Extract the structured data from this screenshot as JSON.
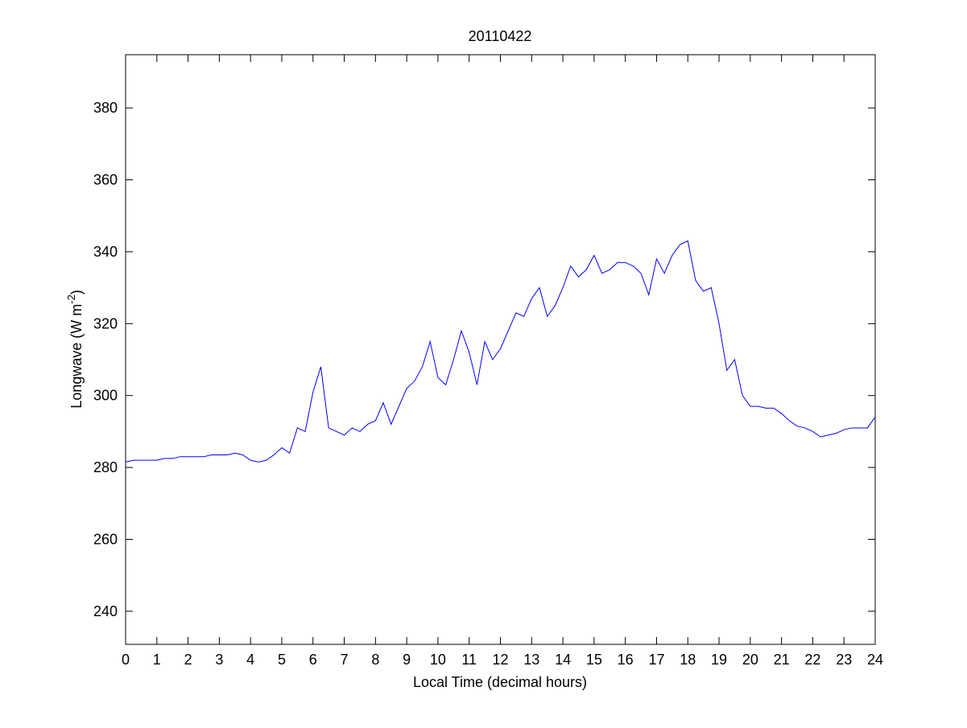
{
  "chart_data": {
    "type": "line",
    "title": "20110422",
    "xlabel": "Local Time (decimal hours)",
    "ylabel": [
      "Longwave (W m",
      "-2",
      ")"
    ],
    "x": [
      0,
      0.25,
      0.5,
      0.75,
      1,
      1.25,
      1.5,
      1.75,
      2,
      2.25,
      2.5,
      2.75,
      3,
      3.25,
      3.5,
      3.75,
      4,
      4.25,
      4.5,
      4.75,
      5,
      5.25,
      5.5,
      5.75,
      6,
      6.25,
      6.5,
      6.75,
      7,
      7.25,
      7.5,
      7.75,
      8,
      8.25,
      8.5,
      8.75,
      9,
      9.25,
      9.5,
      9.75,
      10,
      10.25,
      10.5,
      10.75,
      11,
      11.25,
      11.5,
      11.75,
      12,
      12.25,
      12.5,
      12.75,
      13,
      13.25,
      13.5,
      13.75,
      14,
      14.25,
      14.5,
      14.75,
      15,
      15.25,
      15.5,
      15.75,
      16,
      16.25,
      16.5,
      16.75,
      17,
      17.25,
      17.5,
      17.75,
      18,
      18.25,
      18.5,
      18.75,
      19,
      19.25,
      19.5,
      19.75,
      20,
      20.25,
      20.5,
      20.75,
      21,
      21.25,
      21.5,
      21.75,
      22,
      22.25,
      22.5,
      22.75,
      23,
      23.25,
      23.5,
      23.75,
      24
    ],
    "series": [
      {
        "name": "Longwave",
        "color": "#0000ff",
        "values": [
          281.5,
          282,
          282,
          282,
          282,
          282.5,
          282.5,
          283,
          283,
          283,
          283,
          283.5,
          283.5,
          283.5,
          284,
          283.5,
          282,
          281.5,
          282,
          283.5,
          285.5,
          284,
          291,
          290,
          301,
          308,
          291,
          290,
          289,
          291,
          290,
          292,
          293,
          298,
          292,
          297,
          302,
          304,
          308,
          315,
          305,
          303,
          310,
          318,
          312,
          303,
          315,
          310,
          313,
          318,
          323,
          322,
          327,
          330,
          322,
          325,
          330,
          336,
          333,
          335,
          339,
          334,
          335,
          337,
          337,
          336,
          334,
          328,
          338,
          334,
          339,
          342,
          343,
          332,
          329,
          330,
          320,
          307,
          310,
          300,
          297,
          297,
          296.5,
          296.5,
          295,
          293,
          291.5,
          291,
          290,
          288.5,
          289,
          289.5,
          290.5,
          291,
          291,
          291,
          294
        ]
      }
    ],
    "xlim": [
      0,
      24
    ],
    "xticks": [
      0,
      1,
      2,
      3,
      4,
      5,
      6,
      7,
      8,
      9,
      10,
      11,
      12,
      13,
      14,
      15,
      16,
      17,
      18,
      19,
      20,
      21,
      22,
      23,
      24
    ],
    "ylim": [
      230.8,
      394.8
    ],
    "yticks": [
      240,
      260,
      280,
      300,
      320,
      340,
      360,
      380
    ],
    "grid": false
  }
}
